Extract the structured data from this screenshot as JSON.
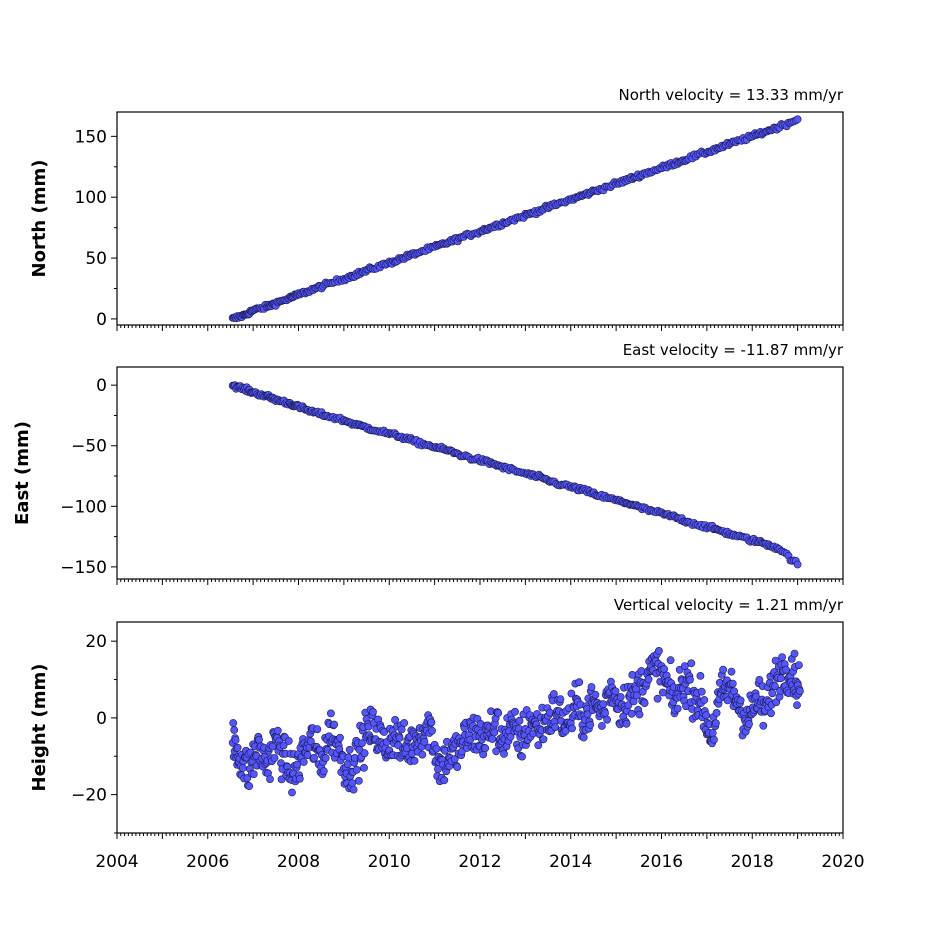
{
  "chart_data": [
    {
      "type": "scatter",
      "title": "North velocity = 13.33 mm/yr",
      "xlabel": "",
      "ylabel": "North (mm)",
      "xlim": [
        2004,
        2020
      ],
      "ylim": [
        -5,
        170
      ],
      "yticks": [
        0,
        50,
        100,
        150
      ],
      "ytick_labels": [
        "0",
        "50",
        "100",
        "150"
      ],
      "show_xtick_labels": false,
      "marker_color": "#5555ff",
      "marker_edge": "#1a1a4d",
      "series": [
        {
          "x": [
            2006.55,
            2006.8,
            2007.0,
            2007.3,
            2007.5,
            2007.8,
            2008.0,
            2008.3,
            2008.6,
            2009.0,
            2009.3,
            2009.6,
            2010.0,
            2010.3,
            2010.6,
            2011.0,
            2011.3,
            2011.6,
            2012.0,
            2012.3,
            2012.6,
            2013.0,
            2013.3,
            2013.6,
            2014.0,
            2014.3,
            2014.6,
            2015.0,
            2015.3,
            2015.6,
            2016.0,
            2016.3,
            2016.6,
            2017.0,
            2017.3,
            2017.6,
            2018.0,
            2018.3,
            2018.6,
            2019.0
          ],
          "y": [
            0,
            3,
            7,
            10,
            13,
            17,
            20,
            24,
            28,
            33,
            37,
            41,
            46,
            50,
            54,
            59,
            63,
            67,
            72,
            76,
            80,
            85,
            89,
            93,
            98,
            102,
            106,
            111,
            115,
            119,
            124,
            128,
            132,
            137,
            141,
            145,
            150,
            154,
            158,
            164
          ]
        }
      ]
    },
    {
      "type": "scatter",
      "title": "East velocity = -11.87 mm/yr",
      "xlabel": "",
      "ylabel": "East (mm)",
      "xlim": [
        2004,
        2020
      ],
      "ylim": [
        -160,
        15
      ],
      "yticks": [
        0,
        -50,
        -100,
        -150
      ],
      "ytick_labels": [
        "0",
        "−50",
        "−100",
        "−150"
      ],
      "show_xtick_labels": false,
      "marker_color": "#5555ff",
      "marker_edge": "#1a1a4d",
      "series": [
        {
          "x": [
            2006.55,
            2006.8,
            2007.0,
            2007.3,
            2007.5,
            2007.8,
            2008.0,
            2008.3,
            2008.6,
            2009.0,
            2009.3,
            2009.6,
            2010.0,
            2010.3,
            2010.6,
            2011.0,
            2011.3,
            2011.6,
            2012.0,
            2012.3,
            2012.6,
            2013.0,
            2013.3,
            2013.6,
            2014.0,
            2014.3,
            2014.6,
            2015.0,
            2015.3,
            2015.6,
            2016.0,
            2016.3,
            2016.6,
            2017.0,
            2017.3,
            2017.6,
            2018.0,
            2018.3,
            2018.6,
            2019.0
          ],
          "y": [
            0,
            -3,
            -6,
            -9,
            -12,
            -15,
            -18,
            -22,
            -25,
            -29,
            -33,
            -36,
            -40,
            -43,
            -47,
            -51,
            -54,
            -58,
            -62,
            -65,
            -69,
            -73,
            -76,
            -80,
            -84,
            -87,
            -91,
            -95,
            -98,
            -102,
            -106,
            -109,
            -113,
            -117,
            -120,
            -124,
            -128,
            -131,
            -135,
            -148
          ]
        }
      ]
    },
    {
      "type": "scatter",
      "title": "Vertical velocity = 1.21 mm/yr",
      "xlabel": "",
      "ylabel": "Height (mm)",
      "xlim": [
        2004,
        2020
      ],
      "ylim": [
        -30,
        25
      ],
      "yticks": [
        20,
        0,
        -20
      ],
      "ytick_labels": [
        "20",
        "0",
        "−20"
      ],
      "show_xtick_labels": true,
      "xticks": [
        2004,
        2006,
        2008,
        2010,
        2012,
        2014,
        2016,
        2018,
        2020
      ],
      "xtick_labels": [
        "2004",
        "2006",
        "2008",
        "2010",
        "2012",
        "2014",
        "2016",
        "2018",
        "2020"
      ],
      "marker_color": "#5555ff",
      "marker_edge": "#1a1a4d",
      "series": [
        {
          "x": [
            2006.55,
            2006.7,
            2006.9,
            2007.1,
            2007.3,
            2007.5,
            2007.7,
            2007.9,
            2008.1,
            2008.3,
            2008.5,
            2008.7,
            2008.9,
            2009.1,
            2009.3,
            2009.5,
            2009.7,
            2009.9,
            2010.1,
            2010.3,
            2010.5,
            2010.7,
            2010.9,
            2011.1,
            2011.3,
            2011.5,
            2011.7,
            2011.9,
            2012.1,
            2012.3,
            2012.5,
            2012.7,
            2012.9,
            2013.1,
            2013.3,
            2013.5,
            2013.7,
            2013.9,
            2014.1,
            2014.3,
            2014.5,
            2014.7,
            2014.9,
            2015.1,
            2015.3,
            2015.5,
            2015.7,
            2015.9,
            2016.1,
            2016.3,
            2016.5,
            2016.7,
            2016.9,
            2017.1,
            2017.3,
            2017.5,
            2017.7,
            2017.9,
            2018.1,
            2018.3,
            2018.5,
            2018.7,
            2018.9,
            2019.05
          ],
          "y": [
            -6,
            -10,
            -14,
            -8,
            -12,
            -6,
            -11,
            -15,
            -9,
            -6,
            -12,
            -3,
            -8,
            -14,
            -10,
            -4,
            -3,
            -8,
            -4,
            -8,
            -7,
            -4,
            -2,
            -13,
            -10,
            -9,
            -5,
            -4,
            -6,
            -2,
            -5,
            -3,
            -6,
            -1,
            -3,
            0,
            2,
            -2,
            3,
            0,
            4,
            1,
            8,
            3,
            5,
            7,
            11,
            13,
            9,
            4,
            10,
            7,
            3,
            -5,
            6,
            8,
            4,
            -1,
            5,
            2,
            10,
            13,
            12,
            7
          ]
        }
      ]
    }
  ]
}
